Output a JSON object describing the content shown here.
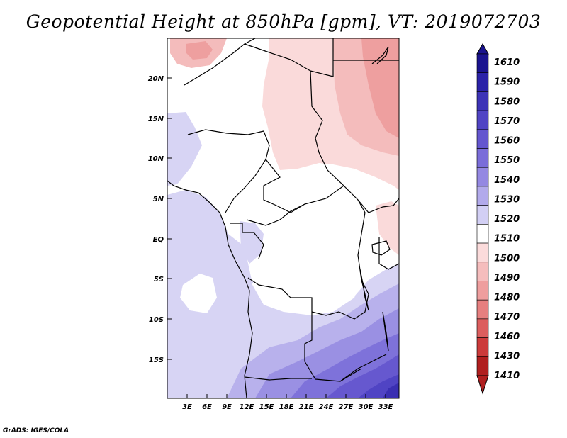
{
  "title": "Geopotential Height at 850hPa [gpm], VT: 2019072703",
  "footer": "GrADS: IGES/COLA",
  "lat_labels": [
    "20N",
    "15N",
    "10N",
    "5N",
    "EQ",
    "5S",
    "10S",
    "15S"
  ],
  "lon_labels": [
    "3E",
    "6E",
    "9E",
    "12E",
    "15E",
    "18E",
    "21E",
    "24E",
    "27E",
    "30E",
    "33E"
  ],
  "colorbar": {
    "labels": [
      "1610",
      "1590",
      "1580",
      "1570",
      "1560",
      "1550",
      "1540",
      "1530",
      "1520",
      "1510",
      "1500",
      "1490",
      "1480",
      "1470",
      "1460",
      "1430",
      "1410"
    ],
    "colors": [
      "#1a138f",
      "#2b22a8",
      "#3d33b7",
      "#5044c4",
      "#6456cf",
      "#7a6dd9",
      "#9488e2",
      "#b2aaeb",
      "#d2cff4",
      "#ffffff",
      "#fbdbdb",
      "#f5bdbd",
      "#ee9e9e",
      "#e67f7f",
      "#dc5e5e",
      "#cc3b3b",
      "#b01f1f"
    ]
  }
}
